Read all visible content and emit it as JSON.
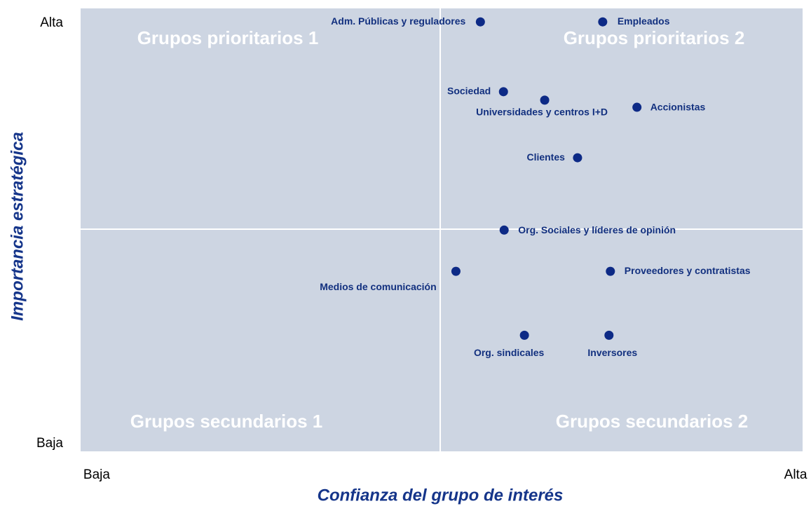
{
  "chart_data": {
    "type": "scatter",
    "x_label": "Confianza del grupo de interés",
    "y_label": "Importancia estratégica",
    "labels": [
      "Adm. Públicas y reguladores",
      "Empleados",
      "Sociedad",
      "Universidades y centros I+D",
      "Accionistas",
      "Clientes",
      "Org. Sociales y líderes de opinión",
      "Medios de comunicación",
      "Proveedores y contratistas",
      "Org. sindicales",
      "Inversores"
    ],
    "x": [
      54.9,
      72.4,
      58.2,
      64.1,
      77.3,
      68.8,
      58.3,
      51.4,
      73.5,
      61.2,
      73.3
    ],
    "values": [
      100.3,
      100.3,
      83.7,
      81.7,
      80,
      68,
      50.8,
      41,
      41,
      25.8,
      25.8
    ],
    "color": "#0d2a86",
    "xlim": [
      -2.3,
      101
    ],
    "ylim": [
      -1.8,
      103.5
    ],
    "xticks": [
      {
        "value": 0,
        "label": "Baja"
      },
      {
        "value": 100,
        "label": "Alta"
      }
    ],
    "yticks": [
      {
        "value": 0,
        "label": "Baja"
      },
      {
        "value": 100,
        "label": "Alta"
      }
    ],
    "annotations": [
      "Grupos prioritarios 1",
      "Grupos prioritarios 2",
      "Grupos secundarios 1",
      "Grupos secundarios 2"
    ]
  }
}
